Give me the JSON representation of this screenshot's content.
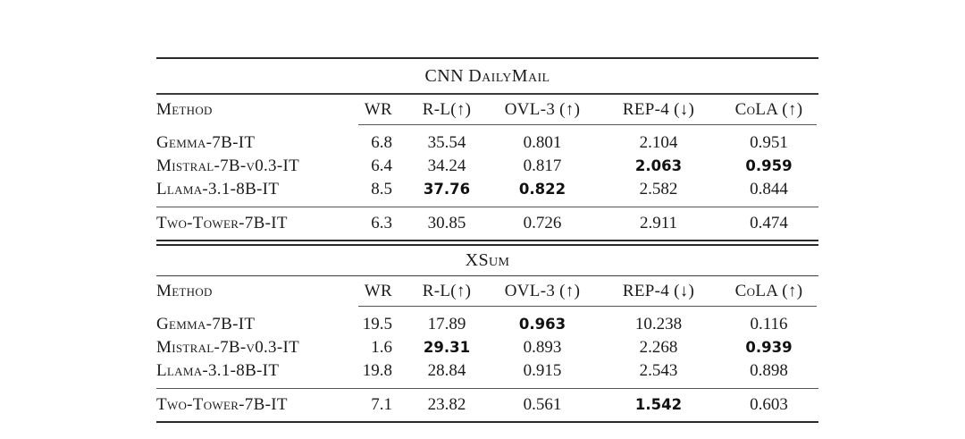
{
  "colors": {
    "background": "#ffffff",
    "text": "#1b1b1b",
    "rule_heavy": "#2a2a2a",
    "rule_light": "#555555"
  },
  "tables": [
    {
      "title": "CNN DailyMail",
      "columns": [
        "Method",
        "WR",
        "R-L(↑)",
        "OVL-3 (↑)",
        "REP-4 (↓)",
        "CoLA (↑)"
      ],
      "rows": [
        {
          "method": "Gemma-7B-IT",
          "values": [
            "6.8",
            "35.54",
            "0.801",
            "2.104",
            "0.951"
          ],
          "bold": [
            false,
            false,
            false,
            false,
            false
          ]
        },
        {
          "method": "Mistral-7B-v0.3-IT",
          "values": [
            "6.4",
            "34.24",
            "0.817",
            "2.063",
            "0.959"
          ],
          "bold": [
            false,
            false,
            false,
            true,
            true
          ]
        },
        {
          "method": "Llama-3.1-8B-IT",
          "values": [
            "8.5",
            "37.76",
            "0.822",
            "2.582",
            "0.844"
          ],
          "bold": [
            false,
            true,
            true,
            false,
            false
          ]
        },
        {
          "method": "Two-Tower-7B-IT",
          "values": [
            "6.3",
            "30.85",
            "0.726",
            "2.911",
            "0.474"
          ],
          "bold": [
            false,
            false,
            false,
            false,
            false
          ]
        }
      ]
    },
    {
      "title": "XSum",
      "columns": [
        "Method",
        "WR",
        "R-L(↑)",
        "OVL-3 (↑)",
        "REP-4 (↓)",
        "CoLA (↑)"
      ],
      "rows": [
        {
          "method": "Gemma-7B-IT",
          "values": [
            "19.5",
            "17.89",
            "0.963",
            "10.238",
            "0.116"
          ],
          "bold": [
            false,
            false,
            true,
            false,
            false
          ]
        },
        {
          "method": "Mistral-7B-v0.3-IT",
          "values": [
            "1.6",
            "29.31",
            "0.893",
            "2.268",
            "0.939"
          ],
          "bold": [
            false,
            true,
            false,
            false,
            true
          ]
        },
        {
          "method": "Llama-3.1-8B-IT",
          "values": [
            "19.8",
            "28.84",
            "0.915",
            "2.543",
            "0.898"
          ],
          "bold": [
            false,
            false,
            false,
            false,
            false
          ]
        },
        {
          "method": "Two-Tower-7B-IT",
          "values": [
            "7.1",
            "23.82",
            "0.561",
            "1.542",
            "0.603"
          ],
          "bold": [
            false,
            false,
            false,
            true,
            false
          ]
        }
      ]
    }
  ]
}
